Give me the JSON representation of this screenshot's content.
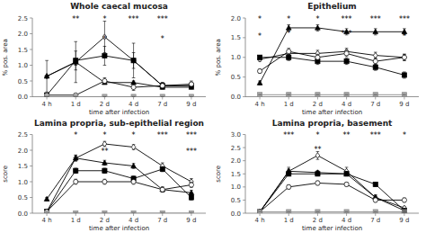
{
  "chart_data": [
    {
      "type": "line",
      "title": "Whole caecal mucosa",
      "x_label": "time after infection",
      "y_label": "% pos. area",
      "categories": [
        "4 h",
        "1 d",
        "2 d",
        "4 d",
        "7 d",
        "9 d"
      ],
      "ylim": [
        0,
        2.5
      ],
      "yticks": [
        {
          "value": 0,
          "label": "0.0"
        },
        0.5,
        {
          "value": 1,
          "label": "1.0"
        },
        1.5,
        {
          "value": 2,
          "label": "2.0"
        },
        2.5
      ],
      "grid": false,
      "series": [
        {
          "marker": "diamond-open",
          "color": "black",
          "values": [
            0.65,
            1.1,
            1.9,
            1.15,
            0.35,
            0.35
          ],
          "errors": [
            0.5,
            0.65,
            0.5,
            0.55,
            0.05,
            0.05
          ]
        },
        {
          "marker": "triangle",
          "color": "black",
          "values": [
            0.65,
            1.1,
            0.45,
            0.45,
            0.3,
            0.3
          ],
          "errors": [
            0.0,
            0.1,
            0.05,
            0.05,
            0.05,
            0.05
          ]
        },
        {
          "marker": "square",
          "color": "black",
          "values": [
            0.05,
            1.15,
            1.3,
            1.15,
            0.35,
            0.35
          ],
          "errors": [
            0.0,
            0.3,
            0.3,
            0.25,
            0.1,
            0.1
          ]
        },
        {
          "marker": "circle-open",
          "color": "black",
          "values": [
            0.05,
            0.05,
            0.5,
            0.3,
            0.35,
            0.4
          ],
          "errors": [
            0.0,
            0.0,
            0.1,
            0.1,
            0.1,
            0.1
          ]
        },
        {
          "marker": "square",
          "color": "#888888",
          "values": [
            0.0,
            0.0,
            0.0,
            0.0,
            0.0,
            0.0
          ],
          "errors": [
            0.0,
            0.0,
            0.0,
            0.0,
            0.0,
            0.0
          ]
        }
      ],
      "annotations": [
        {
          "x": "1 d",
          "y": 2.425,
          "text": "**"
        },
        {
          "x": "2 d",
          "y": 2.425,
          "text": "*"
        },
        {
          "x": "2 d",
          "y": 1.8,
          "text": "*"
        },
        {
          "x": "4 d",
          "y": 2.425,
          "text": "***"
        },
        {
          "x": "7 d",
          "y": 2.425,
          "text": "***"
        },
        {
          "x": "7 d",
          "y": 1.8,
          "text": "*"
        }
      ]
    },
    {
      "type": "line",
      "title": "Epithelium",
      "x_label": "time after infection",
      "y_label": "% pos. area",
      "categories": [
        "4 h",
        "1 d",
        "2 d",
        "4 d",
        "7 d",
        "9 d"
      ],
      "ylim": [
        0,
        2.0
      ],
      "yticks": [
        {
          "value": 0,
          "label": "0.0"
        },
        0.5,
        {
          "value": 1,
          "label": "1.0"
        },
        1.5,
        {
          "value": 2,
          "label": "2.0"
        }
      ],
      "grid": false,
      "series": [
        {
          "marker": "diamond-open",
          "color": "black",
          "values": [
            0.95,
            1.1,
            1.1,
            1.15,
            1.05,
            1.0
          ],
          "errors": [
            0.05,
            0.08,
            0.08,
            0.08,
            0.08,
            0.08
          ]
        },
        {
          "marker": "triangle",
          "color": "black",
          "values": [
            0.35,
            1.75,
            1.75,
            1.65,
            1.65,
            1.65
          ],
          "errors": [
            0.05,
            0.08,
            0.08,
            0.08,
            0.08,
            0.08
          ]
        },
        {
          "marker": "square",
          "color": "black",
          "values": [
            1.0,
            1.0,
            0.9,
            0.9,
            0.75,
            0.55
          ],
          "errors": [
            0.05,
            0.08,
            0.08,
            0.08,
            0.08,
            0.08
          ]
        },
        {
          "marker": "circle-open",
          "color": "black",
          "values": [
            0.65,
            1.15,
            1.0,
            1.1,
            0.9,
            1.0
          ],
          "errors": [
            0.05,
            0.08,
            0.08,
            0.08,
            0.08,
            0.08
          ]
        },
        {
          "marker": "square",
          "color": "#888888",
          "values": [
            0.05,
            0.05,
            0.05,
            0.05,
            0.05,
            0.05
          ],
          "errors": [
            0.0,
            0.0,
            0.0,
            0.0,
            0.0,
            0.0
          ]
        }
      ],
      "annotations": [
        {
          "x": "4 h",
          "y": 1.94,
          "text": "*"
        },
        {
          "x": "4 h",
          "y": 1.5,
          "text": "*"
        },
        {
          "x": "1 d",
          "y": 1.94,
          "text": "*"
        },
        {
          "x": "1 d",
          "y": 1.56,
          "text": "*"
        },
        {
          "x": "2 d",
          "y": 1.94,
          "text": "*"
        },
        {
          "x": "4 d",
          "y": 1.94,
          "text": "***"
        },
        {
          "x": "4 d",
          "y": 1.56,
          "text": "***"
        },
        {
          "x": "7 d",
          "y": 1.94,
          "text": "***"
        },
        {
          "x": "9 d",
          "y": 1.94,
          "text": "***"
        },
        {
          "x": "9 d",
          "y": 1.5,
          "text": "*"
        }
      ]
    },
    {
      "type": "line",
      "title": "Lamina propria, sub-epithelial region",
      "x_label": "time after infection",
      "y_label": "score",
      "categories": [
        "4 h",
        "1 d",
        "2 d",
        "4 d",
        "7 d",
        "9 d"
      ],
      "ylim": [
        0,
        2.5
      ],
      "yticks": [
        {
          "value": 0,
          "label": "0.0"
        },
        0.5,
        {
          "value": 1,
          "label": "1.0"
        },
        1.5,
        {
          "value": 2,
          "label": "2.0"
        },
        2.5
      ],
      "grid": false,
      "series": [
        {
          "marker": "diamond-open",
          "color": "black",
          "values": [
            0.05,
            1.75,
            2.2,
            2.1,
            1.5,
            1.0
          ],
          "errors": [
            0.02,
            0.1,
            0.08,
            0.08,
            0.1,
            0.1
          ]
        },
        {
          "marker": "triangle",
          "color": "black",
          "values": [
            0.45,
            1.75,
            1.6,
            1.5,
            0.75,
            0.65
          ],
          "errors": [
            0.05,
            0.08,
            0.08,
            0.08,
            0.08,
            0.08
          ]
        },
        {
          "marker": "square",
          "color": "black",
          "values": [
            0.05,
            1.35,
            1.35,
            1.1,
            1.4,
            0.5
          ],
          "errors": [
            0.02,
            0.08,
            0.08,
            0.08,
            0.08,
            0.08
          ]
        },
        {
          "marker": "circle-open",
          "color": "black",
          "values": [
            0.05,
            1.0,
            1.0,
            1.0,
            0.75,
            0.9
          ],
          "errors": [
            0.02,
            0.08,
            0.08,
            0.08,
            0.08,
            0.08
          ]
        },
        {
          "marker": "square",
          "color": "#888888",
          "values": [
            0.0,
            0.0,
            0.0,
            0.0,
            0.0,
            0.0
          ],
          "errors": [
            0.0,
            0.0,
            0.0,
            0.0,
            0.0,
            0.0
          ]
        }
      ],
      "annotations": [
        {
          "x": "1 d",
          "y": 2.425,
          "text": "*"
        },
        {
          "x": "2 d",
          "y": 2.425,
          "text": "*"
        },
        {
          "x": "2 d",
          "y": 1.925,
          "text": "**"
        },
        {
          "x": "4 d",
          "y": 2.425,
          "text": "*"
        },
        {
          "x": "7 d",
          "y": 2.425,
          "text": "***"
        },
        {
          "x": "9 d",
          "y": 2.425,
          "text": "***"
        },
        {
          "x": "9 d",
          "y": 1.925,
          "text": "***"
        }
      ]
    },
    {
      "type": "line",
      "title": "Lamina propria, basement",
      "x_label": "time after infection",
      "y_label": "score",
      "categories": [
        "4 h",
        "1 d",
        "2 d",
        "4 d",
        "7 d",
        "9 d"
      ],
      "ylim": [
        0,
        3.0
      ],
      "yticks": [
        {
          "value": 0,
          "label": "0.0"
        },
        0.5,
        {
          "value": 1,
          "label": "1.0"
        },
        1.5,
        {
          "value": 2,
          "label": "2.0"
        },
        2.5,
        {
          "value": 3,
          "label": "3.0"
        }
      ],
      "grid": false,
      "series": [
        {
          "marker": "diamond-open",
          "color": "black",
          "values": [
            0.05,
            1.6,
            2.2,
            1.6,
            0.6,
            0.2
          ],
          "errors": [
            0.02,
            0.15,
            0.15,
            0.15,
            0.1,
            0.05
          ]
        },
        {
          "marker": "triangle",
          "color": "black",
          "values": [
            0.05,
            1.6,
            1.55,
            1.5,
            0.6,
            0.1
          ],
          "errors": [
            0.02,
            0.08,
            0.08,
            0.08,
            0.08,
            0.05
          ]
        },
        {
          "marker": "square",
          "color": "black",
          "values": [
            0.05,
            1.5,
            1.5,
            1.5,
            1.1,
            0.1
          ],
          "errors": [
            0.02,
            0.08,
            0.08,
            0.08,
            0.08,
            0.05
          ]
        },
        {
          "marker": "circle-open",
          "color": "black",
          "values": [
            0.05,
            1.0,
            1.15,
            1.1,
            0.5,
            0.5
          ],
          "errors": [
            0.02,
            0.08,
            0.08,
            0.08,
            0.08,
            0.08
          ]
        },
        {
          "marker": "square",
          "color": "#888888",
          "values": [
            0.05,
            0.05,
            0.05,
            0.05,
            0.05,
            0.05
          ],
          "errors": [
            0.0,
            0.0,
            0.0,
            0.0,
            0.0,
            0.0
          ]
        }
      ],
      "annotations": [
        {
          "x": "1 d",
          "y": 2.91,
          "text": "***"
        },
        {
          "x": "2 d",
          "y": 2.91,
          "text": "*"
        },
        {
          "x": "2 d",
          "y": 2.37,
          "text": "**"
        },
        {
          "x": "4 d",
          "y": 2.91,
          "text": "**"
        },
        {
          "x": "7 d",
          "y": 2.91,
          "text": "***"
        },
        {
          "x": "9 d",
          "y": 2.91,
          "text": "*"
        }
      ]
    }
  ]
}
